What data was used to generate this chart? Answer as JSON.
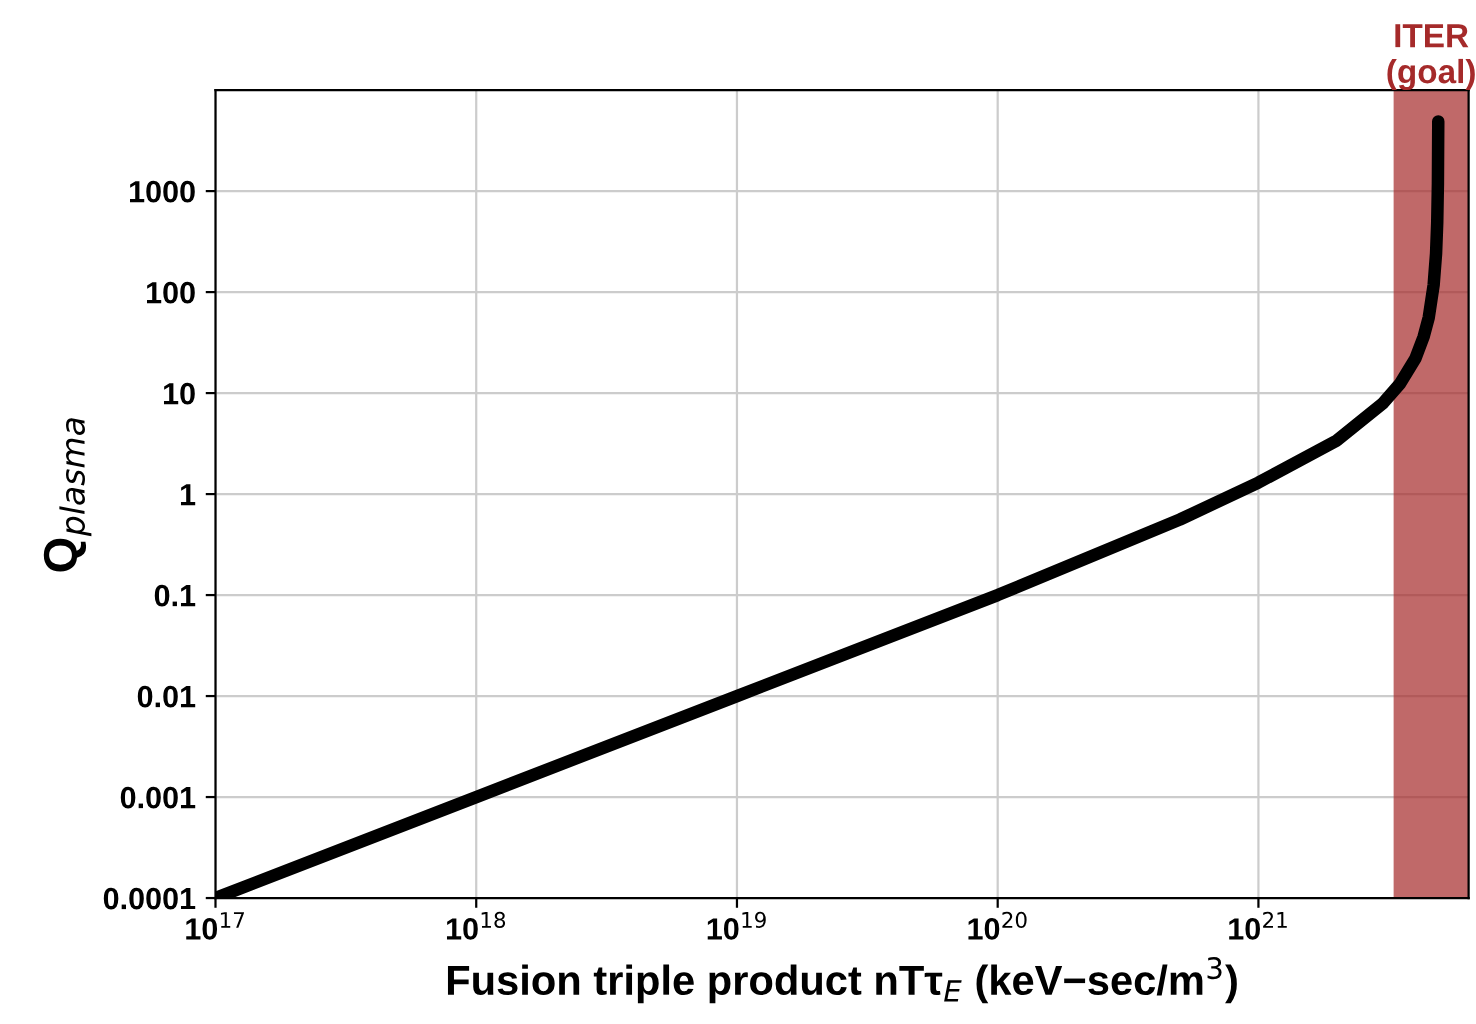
{
  "chart_data": {
    "type": "line",
    "xlabel": "Fusion triple product nTτ$_{E}$ (keV−sec/m$^{3}$)",
    "ylabel": "Q$_{plasma}$",
    "log": "xy",
    "grid": true,
    "xlim": [
      1e+17,
      6.4e+21
    ],
    "ylim": [
      0.0001,
      10000
    ],
    "xticks": [
      {
        "value": 1e+17,
        "label": "10$^{17}$"
      },
      {
        "value": 1e+18,
        "label": "10$^{18}$"
      },
      {
        "value": 1e+19,
        "label": "10$^{19}$"
      },
      {
        "value": 1e+20,
        "label": "10$^{20}$"
      },
      {
        "value": 1e+21,
        "label": "10$^{21}$"
      }
    ],
    "yticks": [
      0.0001,
      0.001,
      0.01,
      0.1,
      1,
      10,
      100,
      1000
    ],
    "series": [
      {
        "color": "#000000",
        "x": [
          1e+17,
          1e+18,
          1e+19,
          1e+20,
          5e+20,
          1e+21,
          2e+21,
          3e+21,
          3.5e+21,
          4e+21,
          4.3e+21,
          4.5e+21,
          4.7e+21,
          4.8e+21,
          4.85e+21,
          4.88e+21,
          4.895e+21
        ],
        "values": [
          0.0001,
          0.001,
          0.01,
          0.1,
          0.56,
          1.3,
          3.4,
          7.9,
          12.5,
          22,
          36,
          56,
          118,
          240,
          485,
          1200,
          4900
        ]
      }
    ],
    "bands": [
      {
        "axis": "x",
        "from": 3.3e+21,
        "to": 6.4e+21,
        "label": "ITER\n(goal)",
        "color": "#a52a2a"
      }
    ]
  }
}
